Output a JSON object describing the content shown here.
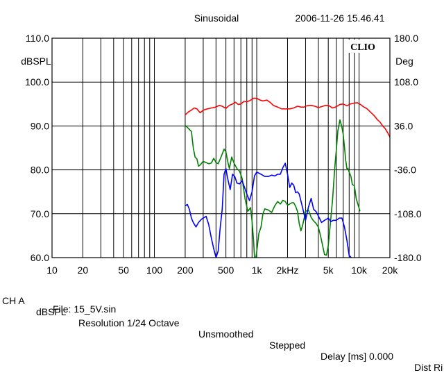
{
  "header": {
    "signal_type": "Sinusoidal",
    "timestamp": "2006-11-26 15.46.41",
    "brand": "CLIO"
  },
  "footer": {
    "channel": "CH A",
    "unit": "dBSPL",
    "resolution": "Resolution 1/24 Octave",
    "smoothing": "Unsmoothed",
    "mode": "Stepped",
    "delay": "Delay [ms] 0.000",
    "dist": "Dist Ri",
    "file": "File: 15_5V.sin"
  },
  "colors": {
    "magnitude": "#ff0000",
    "phase_green": "#008000",
    "phase_blue": "#0000ff",
    "background": "#ffffff",
    "grid": "#000000"
  },
  "chart_data": {
    "type": "line",
    "x_scale": "log",
    "xlim": [
      10,
      20000
    ],
    "x_ticks": [
      {
        "value": 10,
        "label": "10"
      },
      {
        "value": 20,
        "label": "20"
      },
      {
        "value": 50,
        "label": "50"
      },
      {
        "value": 100,
        "label": "100"
      },
      {
        "value": 200,
        "label": "200"
      },
      {
        "value": 500,
        "label": "500"
      },
      {
        "value": 1000,
        "label": "1k"
      },
      {
        "value": 2000,
        "label": "2kHz"
      },
      {
        "value": 5000,
        "label": "5k"
      },
      {
        "value": 10000,
        "label": "10k"
      },
      {
        "value": 20000,
        "label": "20k"
      }
    ],
    "ylabel": "dBSPL",
    "ylim": [
      60,
      110
    ],
    "y_ticks": [
      "60.0",
      "70.0",
      "80.0",
      "90.0",
      "100.0",
      "110.0"
    ],
    "y2label": "Deg",
    "y2lim": [
      -180,
      180
    ],
    "y2_ticks": [
      "-180.0",
      "-108.0",
      "-36.0",
      "36.0",
      "108.0",
      "180.0"
    ],
    "series": [
      {
        "axis": "left",
        "color": "#ff0000",
        "points": [
          [
            200,
            92.5
          ],
          [
            215,
            93.2
          ],
          [
            230,
            93.6
          ],
          [
            245,
            94.1
          ],
          [
            260,
            93.9
          ],
          [
            280,
            93.0
          ],
          [
            300,
            93.6
          ],
          [
            330,
            93.9
          ],
          [
            360,
            94.1
          ],
          [
            400,
            94.3
          ],
          [
            430,
            94.7
          ],
          [
            460,
            94.5
          ],
          [
            500,
            94.0
          ],
          [
            540,
            94.7
          ],
          [
            580,
            95.0
          ],
          [
            620,
            95.4
          ],
          [
            660,
            94.9
          ],
          [
            700,
            95.0
          ],
          [
            750,
            95.6
          ],
          [
            800,
            95.5
          ],
          [
            860,
            95.8
          ],
          [
            930,
            96.3
          ],
          [
            1000,
            96.3
          ],
          [
            1080,
            95.9
          ],
          [
            1150,
            95.7
          ],
          [
            1250,
            95.9
          ],
          [
            1350,
            95.4
          ],
          [
            1450,
            94.7
          ],
          [
            1600,
            94.3
          ],
          [
            1750,
            93.9
          ],
          [
            1900,
            93.9
          ],
          [
            2100,
            93.9
          ],
          [
            2300,
            94.1
          ],
          [
            2500,
            94.5
          ],
          [
            2700,
            94.3
          ],
          [
            2900,
            94.3
          ],
          [
            3100,
            94.6
          ],
          [
            3400,
            94.7
          ],
          [
            3700,
            94.5
          ],
          [
            4000,
            94.2
          ],
          [
            4300,
            94.4
          ],
          [
            4700,
            94.7
          ],
          [
            5100,
            94.6
          ],
          [
            5500,
            94.1
          ],
          [
            6000,
            94.4
          ],
          [
            6500,
            94.9
          ],
          [
            7000,
            95.0
          ],
          [
            7600,
            94.6
          ],
          [
            8200,
            95.0
          ],
          [
            8900,
            95.2
          ],
          [
            9600,
            95.3
          ],
          [
            10300,
            94.9
          ],
          [
            11000,
            94.4
          ],
          [
            12000,
            93.9
          ],
          [
            13000,
            93.1
          ],
          [
            14000,
            92.4
          ],
          [
            15000,
            91.5
          ],
          [
            16000,
            90.9
          ],
          [
            17000,
            90.0
          ],
          [
            18000,
            89.4
          ],
          [
            19000,
            88.5
          ],
          [
            20000,
            87.5
          ]
        ]
      },
      {
        "axis": "right",
        "color": "#008000",
        "points": [
          [
            200,
            37
          ],
          [
            215,
            32
          ],
          [
            230,
            27
          ],
          [
            240,
            0
          ],
          [
            250,
            -15
          ],
          [
            260,
            -18
          ],
          [
            270,
            -30
          ],
          [
            280,
            -28
          ],
          [
            300,
            -22
          ],
          [
            320,
            -24
          ],
          [
            340,
            -26
          ],
          [
            360,
            -25
          ],
          [
            380,
            -17
          ],
          [
            400,
            -24
          ],
          [
            420,
            -26
          ],
          [
            440,
            -18
          ],
          [
            460,
            -10
          ],
          [
            480,
            -2
          ],
          [
            500,
            -6
          ],
          [
            520,
            -22
          ],
          [
            540,
            -34
          ],
          [
            570,
            -15
          ],
          [
            600,
            -25
          ],
          [
            640,
            -34
          ],
          [
            680,
            -38
          ],
          [
            720,
            -50
          ],
          [
            770,
            -84
          ],
          [
            820,
            -104
          ],
          [
            870,
            -98
          ],
          [
            900,
            -120
          ],
          [
            930,
            -150
          ],
          [
            960,
            -190
          ],
          [
            1000,
            -170
          ],
          [
            1050,
            -140
          ],
          [
            1100,
            -130
          ],
          [
            1150,
            -108
          ],
          [
            1200,
            -100
          ],
          [
            1300,
            -102
          ],
          [
            1400,
            -106
          ],
          [
            1500,
            -95
          ],
          [
            1600,
            -88
          ],
          [
            1700,
            -92
          ],
          [
            1800,
            -86
          ],
          [
            1900,
            -88
          ],
          [
            2000,
            -94
          ],
          [
            2100,
            -92
          ],
          [
            2200,
            -90
          ],
          [
            2300,
            -90
          ],
          [
            2400,
            -96
          ],
          [
            2500,
            -104
          ],
          [
            2600,
            -124
          ],
          [
            2700,
            -136
          ],
          [
            2800,
            -128
          ],
          [
            2900,
            -116
          ],
          [
            3000,
            -104
          ],
          [
            3200,
            -102
          ],
          [
            3400,
            -114
          ],
          [
            3600,
            -120
          ],
          [
            3800,
            -124
          ],
          [
            4000,
            -130
          ],
          [
            4200,
            -144
          ],
          [
            4400,
            -160
          ],
          [
            4600,
            -175
          ],
          [
            4800,
            -176
          ],
          [
            5000,
            -160
          ],
          [
            5200,
            -130
          ],
          [
            5500,
            -86
          ],
          [
            5800,
            -30
          ],
          [
            6000,
            -2
          ],
          [
            6200,
            28
          ],
          [
            6500,
            46
          ],
          [
            6800,
            34
          ],
          [
            7000,
            22
          ],
          [
            7200,
            2
          ],
          [
            7400,
            -20
          ],
          [
            7600,
            -34
          ],
          [
            7800,
            -34
          ],
          [
            8000,
            -40
          ],
          [
            8300,
            -46
          ],
          [
            8600,
            -60
          ],
          [
            9000,
            -62
          ],
          [
            9400,
            -84
          ],
          [
            9800,
            -94
          ],
          [
            10200,
            -104
          ]
        ]
      },
      {
        "axis": "left",
        "color": "#0000ff",
        "points": [
          [
            200,
            71.8
          ],
          [
            210,
            72.1
          ],
          [
            220,
            71.0
          ],
          [
            230,
            69.0
          ],
          [
            240,
            68.0
          ],
          [
            255,
            67.0
          ],
          [
            270,
            68.0
          ],
          [
            290,
            68.8
          ],
          [
            320,
            69.4
          ],
          [
            340,
            67.5
          ],
          [
            360,
            64.5
          ],
          [
            380,
            62.0
          ],
          [
            400,
            60.0
          ],
          [
            420,
            61.5
          ],
          [
            440,
            67.0
          ],
          [
            460,
            71.0
          ],
          [
            480,
            79.0
          ],
          [
            500,
            80.3
          ],
          [
            520,
            78.0
          ],
          [
            550,
            75.5
          ],
          [
            580,
            79.0
          ],
          [
            610,
            78.5
          ],
          [
            640,
            77.0
          ],
          [
            680,
            76.8
          ],
          [
            720,
            77.5
          ],
          [
            760,
            76.0
          ],
          [
            800,
            74.5
          ],
          [
            850,
            73.0
          ],
          [
            900,
            75.0
          ],
          [
            950,
            78.6
          ],
          [
            1000,
            79.5
          ],
          [
            1100,
            79.0
          ],
          [
            1200,
            78.5
          ],
          [
            1300,
            78.5
          ],
          [
            1400,
            78.8
          ],
          [
            1500,
            78.6
          ],
          [
            1600,
            79.0
          ],
          [
            1700,
            79.0
          ],
          [
            1800,
            80.5
          ],
          [
            1900,
            81.5
          ],
          [
            2000,
            79.0
          ],
          [
            2100,
            76.0
          ],
          [
            2200,
            77.0
          ],
          [
            2300,
            76.5
          ],
          [
            2400,
            74.8
          ],
          [
            2500,
            75.0
          ],
          [
            2600,
            74.5
          ],
          [
            2800,
            71.5
          ],
          [
            3000,
            68.5
          ],
          [
            3200,
            71.5
          ],
          [
            3400,
            73.5
          ],
          [
            3600,
            71.0
          ],
          [
            3800,
            70.5
          ],
          [
            4000,
            69.5
          ],
          [
            4300,
            68.0
          ],
          [
            4600,
            68.5
          ],
          [
            5000,
            69.0
          ],
          [
            5300,
            68.2
          ],
          [
            5600,
            68.5
          ],
          [
            6000,
            68.5
          ],
          [
            6400,
            69.0
          ],
          [
            6800,
            69.0
          ],
          [
            7200,
            67.0
          ],
          [
            7600,
            64.0
          ],
          [
            8000,
            60.5
          ],
          [
            8400,
            60.0
          ]
        ]
      }
    ]
  }
}
